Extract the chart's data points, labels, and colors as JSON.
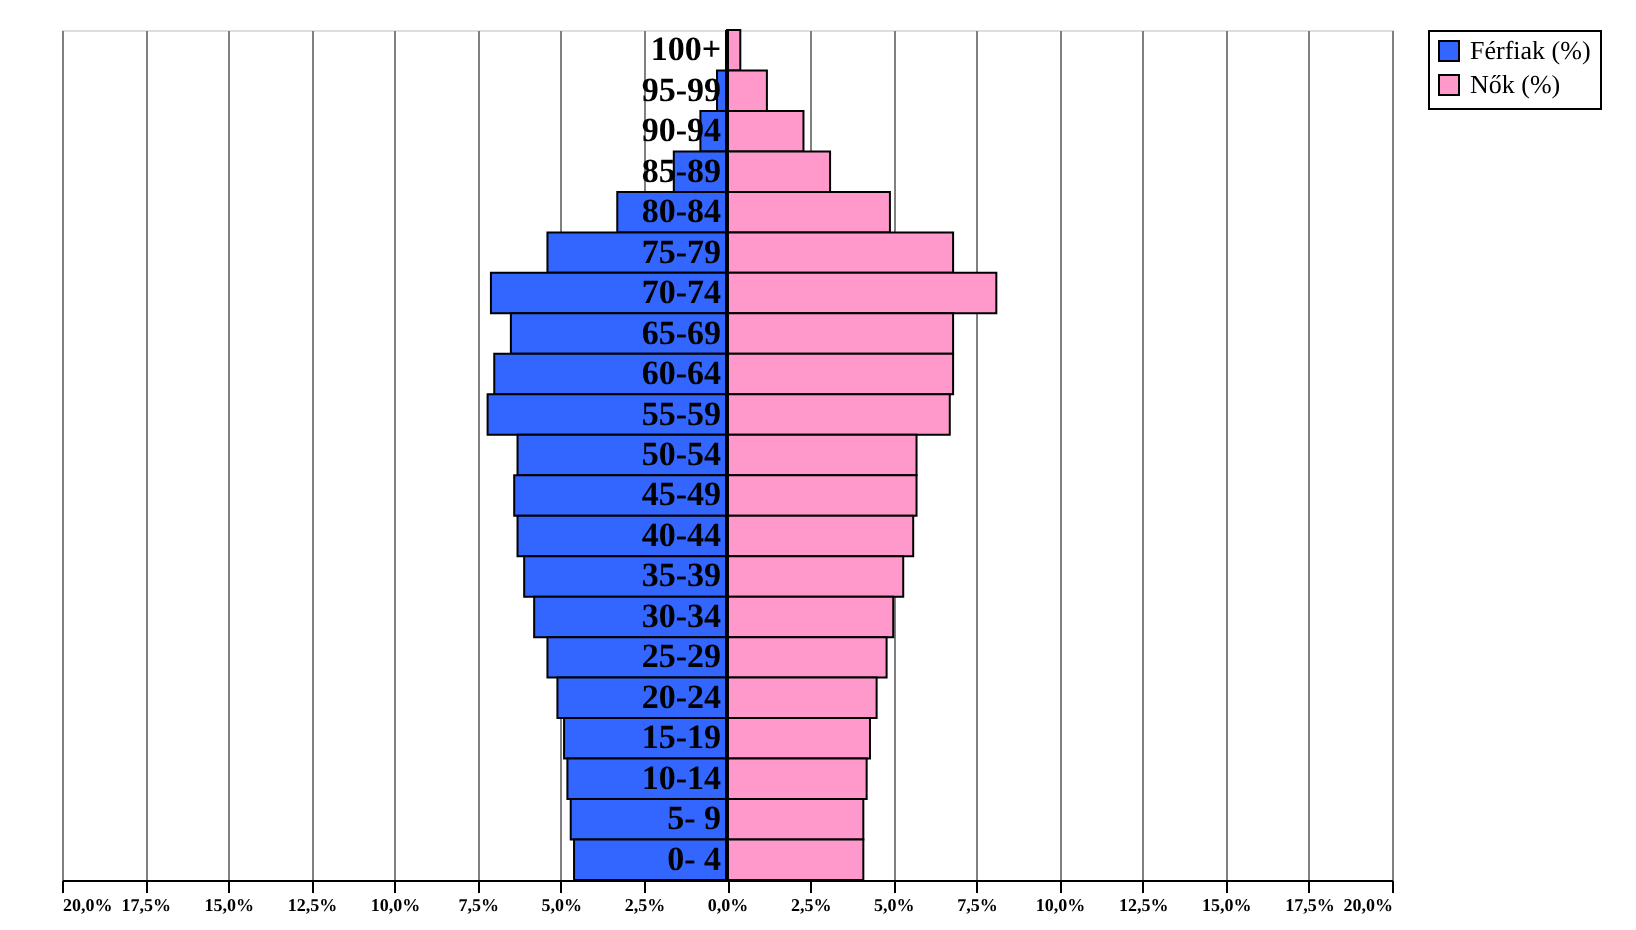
{
  "chart_data": {
    "type": "bar",
    "orientation": "horizontal",
    "categories": [
      "100+",
      "95-99",
      "90-94",
      "85-89",
      "80-84",
      "75-79",
      "70-74",
      "65-69",
      "60-64",
      "55-59",
      "50-54",
      "45-49",
      "40-44",
      "35-39",
      "30-34",
      "25-29",
      "20-24",
      "15-19",
      "10-14",
      "5- 9",
      "0- 4"
    ],
    "series": [
      {
        "name": "Férfiak (%)",
        "color": "#3366ff",
        "values": [
          null,
          -0.3,
          -0.8,
          -1.6,
          -3.3,
          -5.4,
          -7.1,
          -6.5,
          -7.0,
          -7.2,
          -6.3,
          -6.4,
          -6.3,
          -6.1,
          -5.8,
          -5.4,
          -5.1,
          -4.9,
          -4.8,
          -4.7,
          -4.6
        ]
      },
      {
        "name": "Nők (%)",
        "color": "#ff99cc",
        "values": [
          0.4,
          1.2,
          2.3,
          3.1,
          4.9,
          6.8,
          8.1,
          6.8,
          6.8,
          6.7,
          5.7,
          5.7,
          5.6,
          5.3,
          5.0,
          4.8,
          4.5,
          4.3,
          4.2,
          4.1,
          4.1
        ]
      }
    ],
    "xlim": [
      -20,
      20
    ],
    "xticks": [
      {
        "value": -20,
        "label": "20,0%"
      },
      {
        "value": -17.5,
        "label": "17,5%"
      },
      {
        "value": -15,
        "label": "15,0%"
      },
      {
        "value": -12.5,
        "label": "12,5%"
      },
      {
        "value": -10,
        "label": "10,0%"
      },
      {
        "value": -7.5,
        "label": "7,5%"
      },
      {
        "value": -5,
        "label": "5,0%"
      },
      {
        "value": -2.5,
        "label": "2,5%"
      },
      {
        "value": 0,
        "label": "0,0%"
      },
      {
        "value": 2.5,
        "label": "2,5%"
      },
      {
        "value": 5,
        "label": "5,0%"
      },
      {
        "value": 7.5,
        "label": "7,5%"
      },
      {
        "value": 10,
        "label": "10,0%"
      },
      {
        "value": 12.5,
        "label": "12,5%"
      },
      {
        "value": 15,
        "label": "15,0%"
      },
      {
        "value": 17.5,
        "label": "17,5%"
      },
      {
        "value": 20,
        "label": "20,0%"
      }
    ],
    "grid": "x",
    "legend": "right",
    "stacked": true,
    "tick_labels": "x"
  }
}
